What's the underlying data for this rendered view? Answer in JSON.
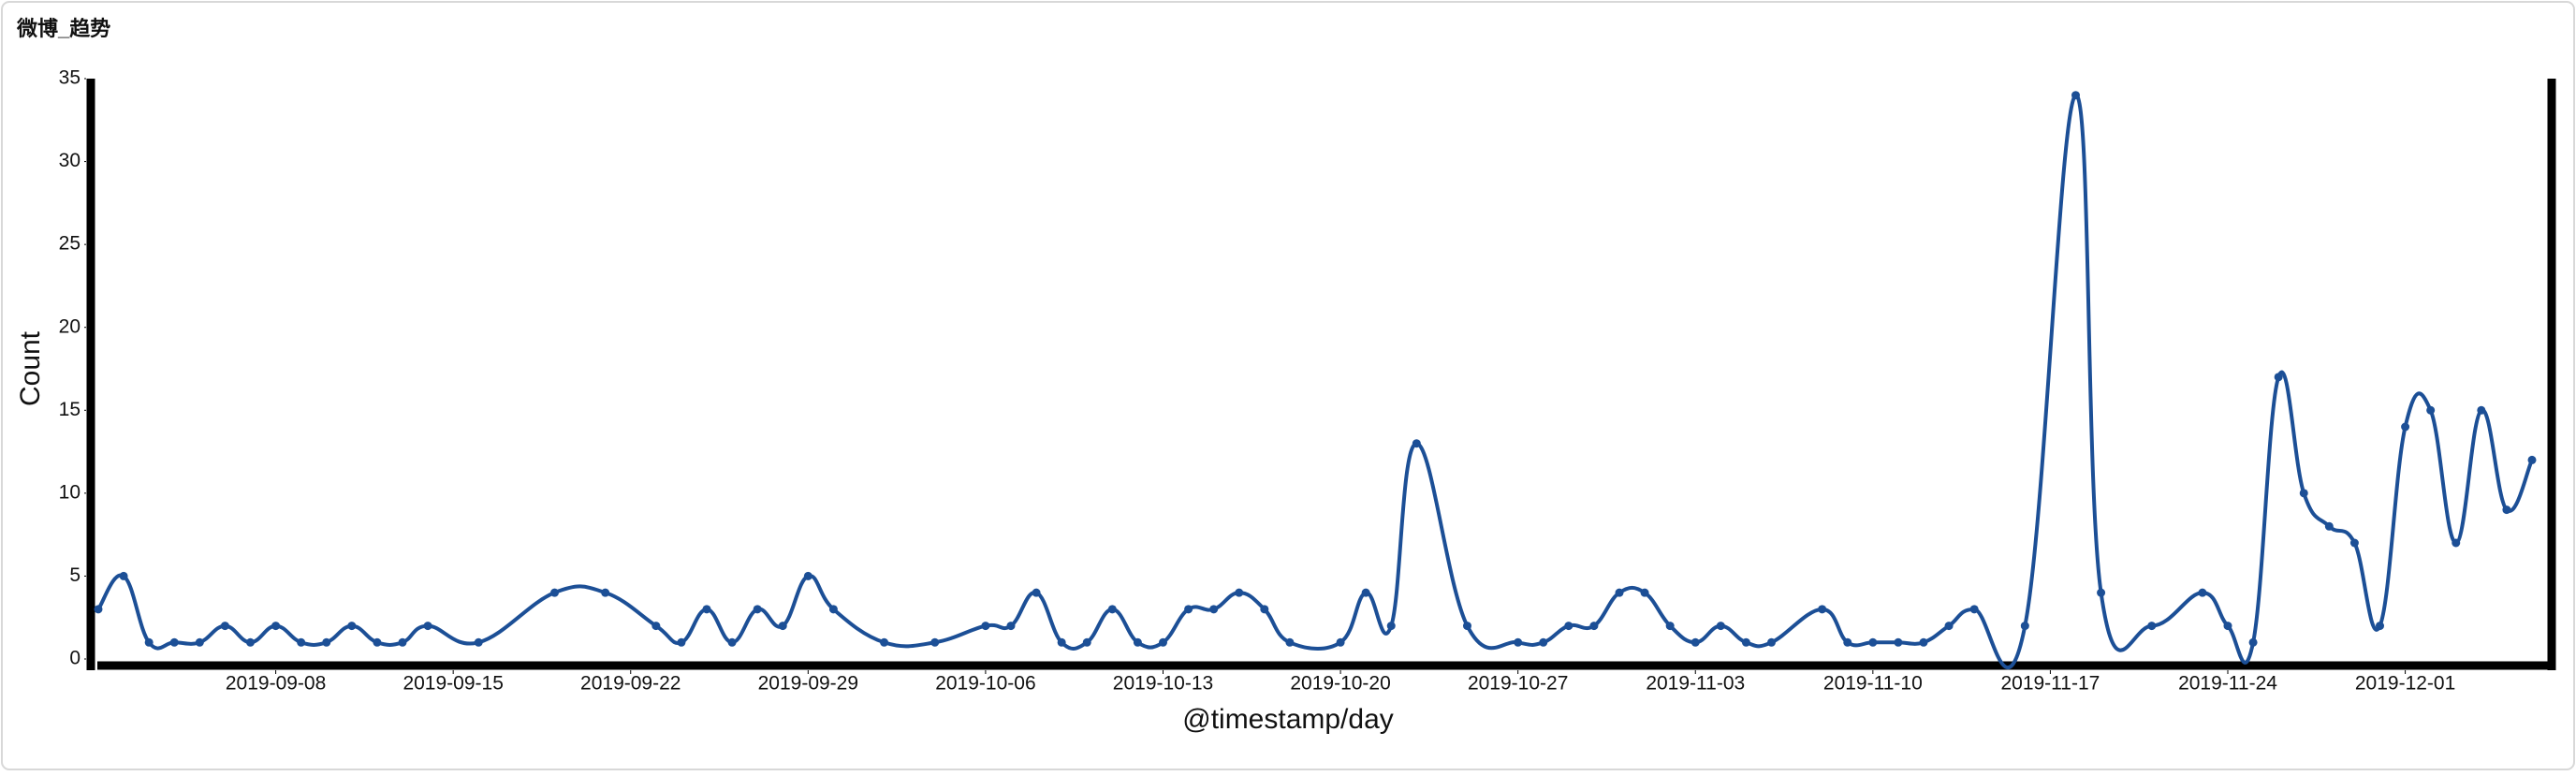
{
  "chart_data": {
    "type": "line",
    "title": "微博_趋势",
    "x_label": "@timestamp/day",
    "y_label": "Count",
    "series": [
      {
        "name": "Count",
        "color": "#1c4f96",
        "x": [
          "2019-09-01",
          "2019-09-02",
          "2019-09-03",
          "2019-09-04",
          "2019-09-05",
          "2019-09-06",
          "2019-09-07",
          "2019-09-08",
          "2019-09-09",
          "2019-09-10",
          "2019-09-11",
          "2019-09-12",
          "2019-09-13",
          "2019-09-14",
          "2019-09-16",
          "2019-09-19",
          "2019-09-21",
          "2019-09-23",
          "2019-09-24",
          "2019-09-25",
          "2019-09-26",
          "2019-09-27",
          "2019-09-28",
          "2019-09-29",
          "2019-09-30",
          "2019-10-02",
          "2019-10-04",
          "2019-10-06",
          "2019-10-07",
          "2019-10-08",
          "2019-10-09",
          "2019-10-10",
          "2019-10-11",
          "2019-10-12",
          "2019-10-13",
          "2019-10-14",
          "2019-10-15",
          "2019-10-16",
          "2019-10-17",
          "2019-10-18",
          "2019-10-20",
          "2019-10-21",
          "2019-10-22",
          "2019-10-23",
          "2019-10-25",
          "2019-10-27",
          "2019-10-28",
          "2019-10-29",
          "2019-10-30",
          "2019-10-31",
          "2019-11-01",
          "2019-11-02",
          "2019-11-03",
          "2019-11-04",
          "2019-11-05",
          "2019-11-06",
          "2019-11-08",
          "2019-11-09",
          "2019-11-10",
          "2019-11-11",
          "2019-11-12",
          "2019-11-13",
          "2019-11-14",
          "2019-11-16",
          "2019-11-18",
          "2019-11-19",
          "2019-11-21",
          "2019-11-23",
          "2019-11-24",
          "2019-11-25",
          "2019-11-26",
          "2019-11-27",
          "2019-11-28",
          "2019-11-29",
          "2019-11-30",
          "2019-12-01",
          "2019-12-02",
          "2019-12-03",
          "2019-12-04",
          "2019-12-05",
          "2019-12-06"
        ],
        "values": [
          3,
          5,
          1,
          1,
          1,
          2,
          1,
          2,
          1,
          1,
          2,
          1,
          1,
          2,
          1,
          4,
          4,
          2,
          1,
          3,
          1,
          3,
          2,
          5,
          3,
          1,
          1,
          2,
          2,
          4,
          1,
          1,
          3,
          1,
          1,
          3,
          3,
          4,
          3,
          1,
          1,
          4,
          2,
          13,
          2,
          1,
          1,
          2,
          2,
          4,
          4,
          2,
          1,
          2,
          1,
          1,
          3,
          1,
          1,
          1,
          1,
          2,
          3,
          2,
          34,
          4,
          2,
          4,
          2,
          1,
          17,
          10,
          8,
          7,
          2,
          14,
          15,
          7,
          15,
          9,
          12
        ]
      }
    ],
    "xlim": [
      "2019-09-01",
      "2019-12-06"
    ],
    "xticks": [
      "2019-09-08",
      "2019-09-15",
      "2019-09-22",
      "2019-09-29",
      "2019-10-06",
      "2019-10-13",
      "2019-10-20",
      "2019-10-27",
      "2019-11-03",
      "2019-11-10",
      "2019-11-17",
      "2019-11-24",
      "2019-12-01"
    ],
    "ylim": [
      0,
      35
    ],
    "yticks": [
      0,
      5,
      10,
      15,
      20,
      25,
      30,
      35
    ]
  }
}
